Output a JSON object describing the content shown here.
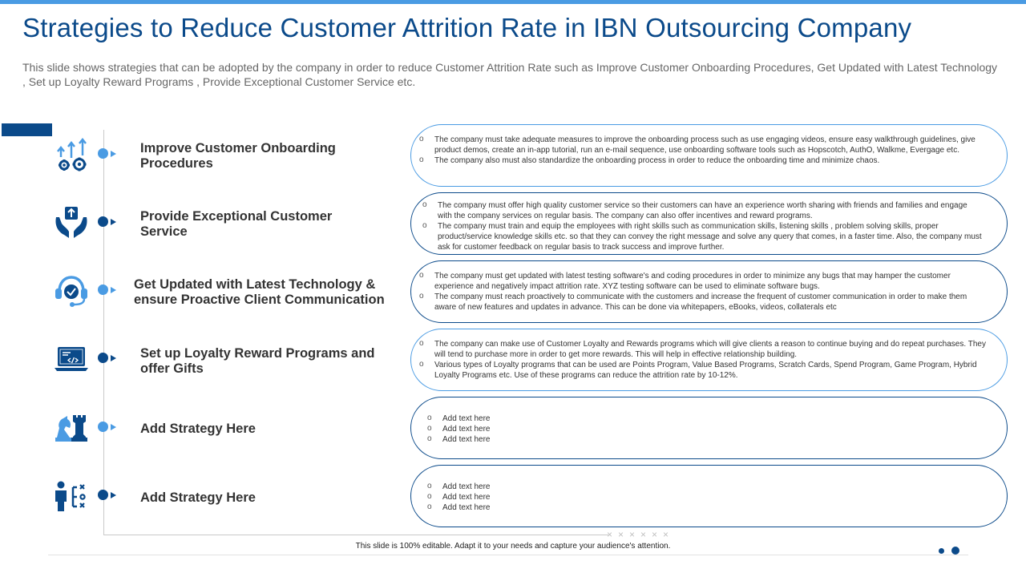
{
  "title": "Strategies to Reduce Customer Attrition Rate in IBN Outsourcing Company",
  "subtitle": "This slide shows strategies that can be adopted by the company in order to reduce Customer Attrition Rate such as Improve Customer Onboarding Procedures, Get Updated with Latest Technology , Set up Loyalty Reward Programs , Provide Exceptional Customer Service etc.",
  "colors": {
    "navy": "#0b4a8a",
    "blue": "#4a9be3",
    "grey_line": "#c9c9c9"
  },
  "strategies": [
    {
      "icon": "gears-arrows-icon",
      "label_line1": "Improve Customer Onboarding",
      "label_line2": "Procedures",
      "points": [
        "The company must take adequate measures to improve the onboarding process such as use engaging videos, ensure easy walkthrough guidelines, give product demos, create an in-app tutorial, run an e-mail sequence, use onboarding software tools such as Hopscotch, AuthO, Walkme, Evergage etc.",
        "The company also must also standardize the onboarding process in order to reduce the onboarding time and minimize  chaos."
      ]
    },
    {
      "icon": "hands-upload-icon",
      "label_line1": "Provide Exceptional Customer",
      "label_line2": "Service",
      "points": [
        "The company must offer high quality customer service so their customers can have an experience worth sharing with friends and families and engage with the company services on regular basis. The company can also offer incentives and reward programs.",
        "The company must train and equip the employees with right skills such as communication  skills,  listening skills , problem solving skills, proper product/service knowledge skills etc. so that they can convey the right message and solve any query that comes, in a faster time. Also, the company must ask for customer feedback on regular basis to track success and improve further."
      ]
    },
    {
      "icon": "headset-chat-icon",
      "label_line1": "Get Updated with Latest Technology &",
      "label_line2": "ensure Proactive Client Communication",
      "points": [
        "The company must get updated with latest testing software's and coding procedures in order to minimize  any bugs that may hamper the customer experience and negatively impact attrition rate. XYZ testing software can be used to eliminate  software bugs.",
        "The company must reach proactively to communicate  with the customers and increase the  frequent of customer communication in order to make them aware of new features and updates in advance. This can be done via whitepapers, eBooks, videos, collaterals etc"
      ]
    },
    {
      "icon": "laptop-code-icon",
      "label_line1": "Set up Loyalty Reward Programs and",
      "label_line2": "offer Gifts",
      "points": [
        "The company can make use of Customer Loyalty and Rewards programs which will give clients a reason to continue buying and do repeat purchases. They will tend to purchase more in  order to get more rewards. This will help in  effective relationship building.",
        "Various types of Loyalty programs that can be used are Points  Program,  Value Based Programs, Scratch Cards, Spend Program,  Game  Program, Hybrid Loyalty Programs etc. Use of these programs can reduce the attrition rate by 10-12%."
      ]
    },
    {
      "icon": "chess-pieces-icon",
      "label_line1": "Add Strategy Here",
      "label_line2": "",
      "points": [
        "Add text here",
        "Add text here",
        "Add text here"
      ]
    },
    {
      "icon": "strategy-person-icon",
      "label_line1": "Add Strategy Here",
      "label_line2": "",
      "points": [
        "Add text here",
        "Add text here",
        "Add text here"
      ]
    }
  ],
  "footer_text": "This slide is 100% editable.  Adapt it to your needs and capture your audience's attention.",
  "decor_marks": "××××××"
}
